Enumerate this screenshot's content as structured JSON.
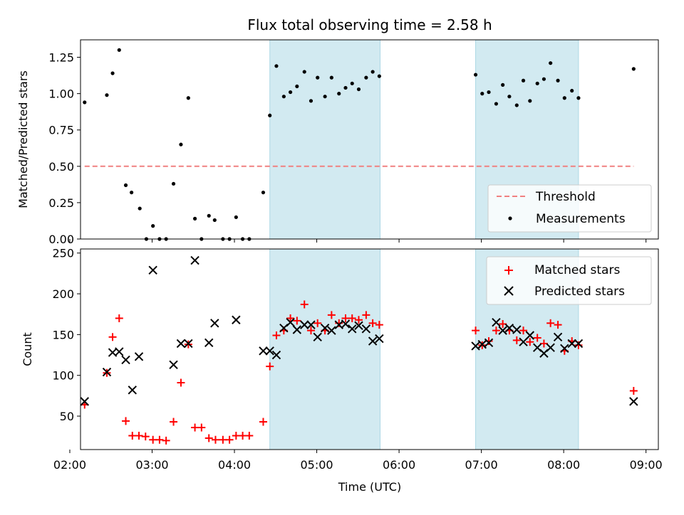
{
  "title": "Flux total observing time = 2.58 h",
  "colors": {
    "shade": "#add8e6",
    "threshold": "#f08080",
    "measurement": "#000000",
    "matched": "#ff0000",
    "predicted": "#000000"
  },
  "chart_data": [
    {
      "type": "scatter",
      "ylabel": "Matched/Predicted stars",
      "xlim": [
        2.13,
        9.15
      ],
      "ylim": [
        0,
        1.37
      ],
      "yticks": [
        "0.00",
        "0.25",
        "0.50",
        "0.75",
        "1.00",
        "1.25"
      ],
      "ytick_values": [
        0,
        0.25,
        0.5,
        0.75,
        1.0,
        1.25
      ],
      "shaded_intervals": [
        [
          4.43,
          5.77
        ],
        [
          6.93,
          8.18
        ]
      ],
      "legend": {
        "placement": "lower-right",
        "entries": [
          "Threshold",
          "Measurements"
        ]
      },
      "threshold": {
        "name": "Threshold",
        "y": 0.5,
        "x": [
          2.18,
          8.85
        ],
        "style": "dashed"
      },
      "series": [
        {
          "name": "Measurements",
          "points": [
            [
              2.18,
              0.94
            ],
            [
              2.45,
              0.99
            ],
            [
              2.52,
              1.14
            ],
            [
              2.6,
              1.3
            ],
            [
              2.68,
              0.37
            ],
            [
              2.75,
              0.32
            ],
            [
              2.85,
              0.21
            ],
            [
              2.93,
              0.0
            ],
            [
              3.01,
              0.09
            ],
            [
              3.09,
              0.0
            ],
            [
              3.17,
              0.0
            ],
            [
              3.26,
              0.38
            ],
            [
              3.35,
              0.65
            ],
            [
              3.44,
              0.97
            ],
            [
              3.52,
              0.14
            ],
            [
              3.6,
              0.0
            ],
            [
              3.69,
              0.16
            ],
            [
              3.76,
              0.13
            ],
            [
              3.86,
              0.0
            ],
            [
              3.94,
              0.0
            ],
            [
              4.02,
              0.15
            ],
            [
              4.1,
              0.0
            ],
            [
              4.18,
              0.0
            ],
            [
              4.35,
              0.32
            ],
            [
              4.43,
              0.85
            ],
            [
              4.51,
              1.19
            ],
            [
              4.6,
              0.98
            ],
            [
              4.68,
              1.01
            ],
            [
              4.76,
              1.05
            ],
            [
              4.85,
              1.15
            ],
            [
              4.93,
              0.95
            ],
            [
              5.01,
              1.11
            ],
            [
              5.1,
              0.98
            ],
            [
              5.18,
              1.11
            ],
            [
              5.27,
              1.0
            ],
            [
              5.35,
              1.04
            ],
            [
              5.43,
              1.07
            ],
            [
              5.51,
              1.03
            ],
            [
              5.6,
              1.11
            ],
            [
              5.68,
              1.15
            ],
            [
              5.76,
              1.12
            ],
            [
              6.93,
              1.13
            ],
            [
              7.01,
              1.0
            ],
            [
              7.09,
              1.01
            ],
            [
              7.18,
              0.93
            ],
            [
              7.26,
              1.06
            ],
            [
              7.34,
              0.98
            ],
            [
              7.43,
              0.92
            ],
            [
              7.51,
              1.09
            ],
            [
              7.59,
              0.95
            ],
            [
              7.68,
              1.07
            ],
            [
              7.76,
              1.1
            ],
            [
              7.84,
              1.21
            ],
            [
              7.93,
              1.09
            ],
            [
              8.01,
              0.97
            ],
            [
              8.1,
              1.02
            ],
            [
              8.18,
              0.97
            ],
            [
              8.85,
              1.17
            ]
          ]
        }
      ]
    },
    {
      "type": "scatter",
      "xlabel": "Time (UTC)",
      "ylabel": "Count",
      "xlim": [
        2.13,
        9.15
      ],
      "ylim": [
        9,
        255
      ],
      "xticks": [
        "02:00",
        "03:00",
        "04:00",
        "05:00",
        "06:00",
        "07:00",
        "08:00",
        "09:00"
      ],
      "xtick_values": [
        2,
        3,
        4,
        5,
        6,
        7,
        8,
        9
      ],
      "yticks": [
        "50",
        "100",
        "150",
        "200",
        "250"
      ],
      "ytick_values": [
        50,
        100,
        150,
        200,
        250
      ],
      "shaded_intervals": [
        [
          4.43,
          5.77
        ],
        [
          6.93,
          8.18
        ]
      ],
      "legend": {
        "placement": "top-right",
        "entries": [
          "Matched stars",
          "Predicted stars"
        ]
      },
      "series": [
        {
          "name": "Matched stars",
          "marker": "plus",
          "points": [
            [
              2.18,
              64
            ],
            [
              2.45,
              103
            ],
            [
              2.52,
              147
            ],
            [
              2.6,
              170
            ],
            [
              2.68,
              44
            ],
            [
              2.76,
              26
            ],
            [
              2.84,
              26
            ],
            [
              2.92,
              25
            ],
            [
              3.01,
              21
            ],
            [
              3.09,
              21
            ],
            [
              3.17,
              20
            ],
            [
              3.26,
              43
            ],
            [
              3.35,
              91
            ],
            [
              3.44,
              138
            ],
            [
              3.52,
              36
            ],
            [
              3.6,
              36
            ],
            [
              3.69,
              23
            ],
            [
              3.77,
              21
            ],
            [
              3.86,
              21
            ],
            [
              3.94,
              21
            ],
            [
              4.02,
              26
            ],
            [
              4.1,
              26
            ],
            [
              4.18,
              26
            ],
            [
              4.35,
              43
            ],
            [
              4.43,
              111
            ],
            [
              4.51,
              149
            ],
            [
              4.6,
              155
            ],
            [
              4.68,
              170
            ],
            [
              4.76,
              167
            ],
            [
              4.85,
              187
            ],
            [
              4.93,
              155
            ],
            [
              5.01,
              164
            ],
            [
              5.1,
              155
            ],
            [
              5.18,
              174
            ],
            [
              5.27,
              164
            ],
            [
              5.35,
              170
            ],
            [
              5.43,
              170
            ],
            [
              5.51,
              168
            ],
            [
              5.6,
              174
            ],
            [
              5.68,
              164
            ],
            [
              5.76,
              162
            ],
            [
              6.93,
              155
            ],
            [
              7.01,
              137
            ],
            [
              7.09,
              142
            ],
            [
              7.18,
              155
            ],
            [
              7.26,
              163
            ],
            [
              7.34,
              155
            ],
            [
              7.43,
              143
            ],
            [
              7.51,
              155
            ],
            [
              7.59,
              141
            ],
            [
              7.68,
              146
            ],
            [
              7.76,
              139
            ],
            [
              7.84,
              164
            ],
            [
              7.93,
              162
            ],
            [
              8.01,
              130
            ],
            [
              8.1,
              142
            ],
            [
              8.18,
              137
            ],
            [
              8.85,
              81
            ]
          ]
        },
        {
          "name": "Predicted stars",
          "marker": "x",
          "points": [
            [
              2.18,
              68
            ],
            [
              2.45,
              104
            ],
            [
              2.52,
              128
            ],
            [
              2.6,
              129
            ],
            [
              2.68,
              119
            ],
            [
              2.76,
              82
            ],
            [
              2.84,
              123
            ],
            [
              3.01,
              229
            ],
            [
              3.26,
              113
            ],
            [
              3.35,
              139
            ],
            [
              3.44,
              139
            ],
            [
              3.52,
              241
            ],
            [
              3.69,
              140
            ],
            [
              3.76,
              164
            ],
            [
              4.02,
              168
            ],
            [
              4.35,
              130
            ],
            [
              4.43,
              130
            ],
            [
              4.51,
              125
            ],
            [
              4.6,
              158
            ],
            [
              4.68,
              165
            ],
            [
              4.76,
              156
            ],
            [
              4.85,
              162
            ],
            [
              4.93,
              162
            ],
            [
              5.01,
              147
            ],
            [
              5.1,
              158
            ],
            [
              5.18,
              155
            ],
            [
              5.27,
              162
            ],
            [
              5.35,
              163
            ],
            [
              5.43,
              157
            ],
            [
              5.51,
              161
            ],
            [
              5.6,
              157
            ],
            [
              5.68,
              142
            ],
            [
              5.76,
              145
            ],
            [
              6.93,
              136
            ],
            [
              7.01,
              138
            ],
            [
              7.09,
              140
            ],
            [
              7.18,
              165
            ],
            [
              7.26,
              155
            ],
            [
              7.34,
              158
            ],
            [
              7.43,
              156
            ],
            [
              7.51,
              141
            ],
            [
              7.59,
              149
            ],
            [
              7.68,
              134
            ],
            [
              7.76,
              127
            ],
            [
              7.84,
              134
            ],
            [
              7.93,
              147
            ],
            [
              8.01,
              133
            ],
            [
              8.1,
              139
            ],
            [
              8.18,
              139
            ],
            [
              8.85,
              68
            ]
          ]
        }
      ]
    }
  ]
}
